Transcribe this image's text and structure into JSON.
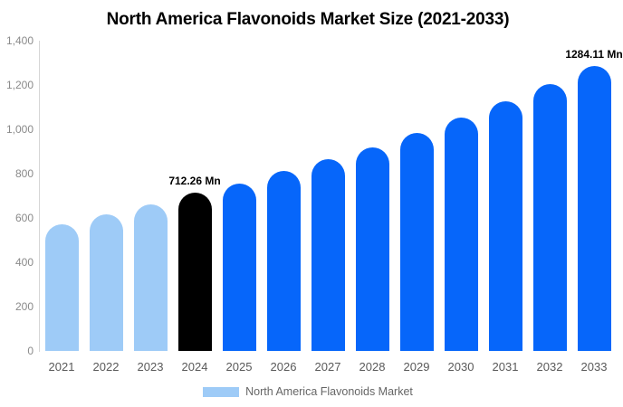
{
  "title": "North America Flavonoids Market Size (2021-2033)",
  "legend": {
    "label": "North America Flavonoids Market",
    "swatch_color": "#9ecbf7"
  },
  "colors": {
    "historical_bar": "#9ecbf7",
    "base_year_bar": "#000000",
    "forecast_bar": "#0666fa",
    "axis_line": "#d6d6d6",
    "y_tick_text": "#8a8a8a",
    "x_tick_text": "#595959",
    "title_text": "#000000"
  },
  "chart_data": {
    "type": "bar",
    "title": "North America Flavonoids Market Size (2021-2033)",
    "xlabel": "",
    "ylabel": "",
    "unit": "Mn",
    "categories": [
      "2021",
      "2022",
      "2023",
      "2024",
      "2025",
      "2026",
      "2027",
      "2028",
      "2029",
      "2030",
      "2031",
      "2032",
      "2033"
    ],
    "values": [
      570,
      618,
      663,
      712.26,
      757,
      812,
      866,
      920,
      985,
      1052,
      1128,
      1204,
      1284.11
    ],
    "bar_colors": [
      "#9ecbf7",
      "#9ecbf7",
      "#9ecbf7",
      "#000000",
      "#0666fa",
      "#0666fa",
      "#0666fa",
      "#0666fa",
      "#0666fa",
      "#0666fa",
      "#0666fa",
      "#0666fa",
      "#0666fa"
    ],
    "ylim": [
      0,
      1400
    ],
    "y_ticks": [
      {
        "value": 0,
        "label": "0"
      },
      {
        "value": 200,
        "label": "200"
      },
      {
        "value": 400,
        "label": "400"
      },
      {
        "value": 600,
        "label": "600"
      },
      {
        "value": 800,
        "label": "800"
      },
      {
        "value": 1000,
        "label": "1,000"
      },
      {
        "value": 1200,
        "label": "1,200"
      },
      {
        "value": 1400,
        "label": "1,400"
      }
    ],
    "grid": false,
    "legend_position": "bottom",
    "annotations": [
      {
        "category": "2024",
        "text": "712.26 Mn"
      },
      {
        "category": "2033",
        "text": "1284.11 Mn"
      }
    ]
  }
}
